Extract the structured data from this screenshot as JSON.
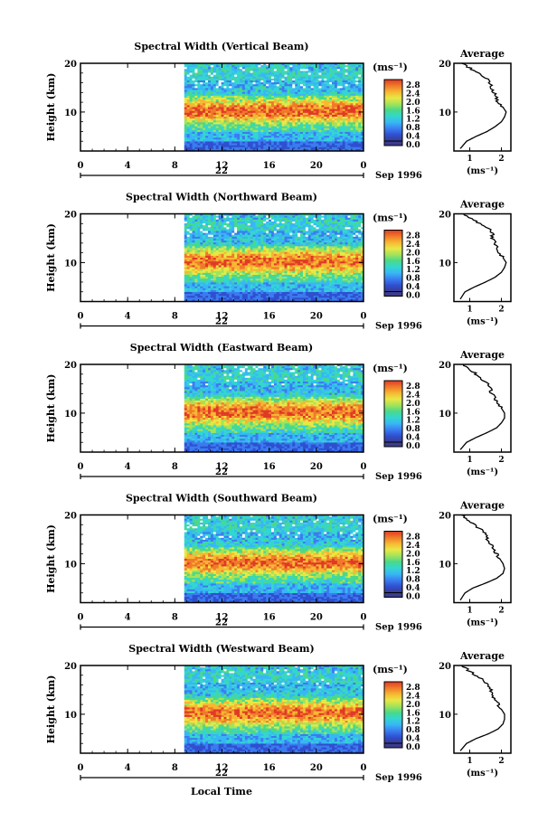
{
  "figure": {
    "xlabel_bottom": "Local Time",
    "colorscale": [
      "#3b3b8f",
      "#2f4fd0",
      "#3a7cf0",
      "#38b6f5",
      "#33d6d0",
      "#49d98a",
      "#a3e35a",
      "#e8e845",
      "#f7b733",
      "#f07a2a",
      "#e03a26"
    ]
  },
  "chart_data": [
    {
      "type": "heatmap",
      "title": "Spectral Width (Vertical Beam)",
      "ylabel": "Height (km)",
      "yticks": [
        "20",
        "10"
      ],
      "ylim": [
        2,
        20
      ],
      "xticks": [
        "0",
        "4",
        "8",
        "12",
        "16",
        "20",
        "0"
      ],
      "xlim": [
        0,
        24
      ],
      "date_marker": "22",
      "date_label": "Sep 1996",
      "data_start_hour": 8.8,
      "colorbar": {
        "unit": "(ms⁻¹)",
        "ticks": [
          "2.8",
          "2.4",
          "2.0",
          "1.6",
          "1.2",
          "0.8",
          "0.4",
          "0.0"
        ]
      },
      "profile": {
        "title": "Average",
        "xlabel": "(ms⁻¹)",
        "xticks": [
          "1",
          "2"
        ],
        "yticks": [
          "20",
          "10"
        ],
        "heights": [
          2.5,
          4,
          5,
          6,
          7,
          8,
          9,
          10,
          11,
          12,
          13,
          14,
          15,
          16,
          17,
          18,
          19,
          20
        ],
        "values": [
          0.7,
          0.9,
          1.2,
          1.55,
          1.8,
          2.0,
          2.1,
          2.15,
          2.05,
          1.9,
          1.85,
          1.75,
          1.7,
          1.65,
          1.5,
          1.3,
          1.0,
          0.75
        ]
      }
    },
    {
      "type": "heatmap",
      "title": "Spectral Width (Northward Beam)",
      "ylabel": "Height (km)",
      "yticks": [
        "20",
        "10"
      ],
      "ylim": [
        2,
        20
      ],
      "xticks": [
        "0",
        "4",
        "8",
        "12",
        "16",
        "20",
        "0"
      ],
      "xlim": [
        0,
        24
      ],
      "date_marker": "22",
      "date_label": "Sep 1996",
      "data_start_hour": 8.8,
      "colorbar": {
        "unit": "(ms⁻¹)",
        "ticks": [
          "2.8",
          "2.4",
          "2.0",
          "1.6",
          "1.2",
          "0.8",
          "0.4",
          "0.0"
        ]
      },
      "profile": {
        "title": "Average",
        "xlabel": "(ms⁻¹)",
        "xticks": [
          "1",
          "2"
        ],
        "yticks": [
          "20",
          "10"
        ],
        "heights": [
          2.5,
          4,
          5,
          6,
          7,
          8,
          9,
          10,
          11,
          12,
          13,
          14,
          15,
          16,
          17,
          18,
          19,
          20
        ],
        "values": [
          0.7,
          0.85,
          1.15,
          1.5,
          1.8,
          2.0,
          2.1,
          2.15,
          2.05,
          1.9,
          1.85,
          1.8,
          1.7,
          1.75,
          1.6,
          1.3,
          1.05,
          0.8
        ]
      }
    },
    {
      "type": "heatmap",
      "title": "Spectral Width (Eastward Beam)",
      "ylabel": "Height (km)",
      "yticks": [
        "20",
        "10"
      ],
      "ylim": [
        2,
        20
      ],
      "xticks": [
        "0",
        "4",
        "8",
        "12",
        "16",
        "20",
        "0"
      ],
      "xlim": [
        0,
        24
      ],
      "date_marker": "22",
      "date_label": "Sep 1996",
      "data_start_hour": 8.8,
      "colorbar": {
        "unit": "(ms⁻¹)",
        "ticks": [
          "2.8",
          "2.4",
          "2.0",
          "1.6",
          "1.2",
          "0.8",
          "0.4",
          "0.0"
        ]
      },
      "profile": {
        "title": "Average",
        "xlabel": "(ms⁻¹)",
        "xticks": [
          "1",
          "2"
        ],
        "yticks": [
          "20",
          "10"
        ],
        "heights": [
          2.5,
          4,
          5,
          6,
          7,
          8,
          9,
          10,
          11,
          12,
          13,
          14,
          15,
          16,
          17,
          18,
          19,
          20
        ],
        "values": [
          0.7,
          0.9,
          1.2,
          1.55,
          1.85,
          2.0,
          2.1,
          2.1,
          2.0,
          1.9,
          1.8,
          1.7,
          1.65,
          1.55,
          1.4,
          1.2,
          1.0,
          0.8
        ]
      }
    },
    {
      "type": "heatmap",
      "title": "Spectral Width (Southward Beam)",
      "ylabel": "Height (km)",
      "yticks": [
        "20",
        "10"
      ],
      "ylim": [
        2,
        20
      ],
      "xticks": [
        "0",
        "4",
        "8",
        "12",
        "16",
        "20",
        "0"
      ],
      "xlim": [
        0,
        24
      ],
      "date_marker": "22",
      "date_label": "Sep 1996",
      "data_start_hour": 8.8,
      "colorbar": {
        "unit": "(ms⁻¹)",
        "ticks": [
          "2.8",
          "2.4",
          "2.0",
          "1.6",
          "1.2",
          "0.8",
          "0.4",
          "0.0"
        ]
      },
      "profile": {
        "title": "Average",
        "xlabel": "(ms⁻¹)",
        "xticks": [
          "1",
          "2"
        ],
        "yticks": [
          "20",
          "10"
        ],
        "heights": [
          2.5,
          4,
          5,
          6,
          7,
          8,
          9,
          10,
          11,
          12,
          13,
          14,
          15,
          16,
          17,
          18,
          19,
          20
        ],
        "values": [
          0.7,
          0.85,
          1.1,
          1.5,
          1.85,
          2.05,
          2.1,
          2.05,
          1.95,
          1.85,
          1.75,
          1.65,
          1.55,
          1.5,
          1.35,
          1.15,
          0.95,
          0.75
        ]
      }
    },
    {
      "type": "heatmap",
      "title": "Spectral Width (Westward Beam)",
      "ylabel": "Height (km)",
      "yticks": [
        "20",
        "10"
      ],
      "ylim": [
        2,
        20
      ],
      "xticks": [
        "0",
        "4",
        "8",
        "12",
        "16",
        "20",
        "0"
      ],
      "xlim": [
        0,
        24
      ],
      "date_marker": "22",
      "date_label": "Sep 1996",
      "data_start_hour": 8.8,
      "colorbar": {
        "unit": "(ms⁻¹)",
        "ticks": [
          "2.8",
          "2.4",
          "2.0",
          "1.6",
          "1.2",
          "0.8",
          "0.4",
          "0.0"
        ]
      },
      "profile": {
        "title": "Average",
        "xlabel": "(ms⁻¹)",
        "xticks": [
          "1",
          "2"
        ],
        "yticks": [
          "20",
          "10"
        ],
        "heights": [
          2.5,
          4,
          5,
          6,
          7,
          8,
          9,
          10,
          11,
          12,
          13,
          14,
          15,
          16,
          17,
          18,
          19,
          20
        ],
        "values": [
          0.7,
          0.9,
          1.2,
          1.6,
          1.9,
          2.05,
          2.1,
          2.1,
          2.0,
          1.9,
          1.8,
          1.7,
          1.65,
          1.55,
          1.4,
          1.2,
          0.95,
          0.75
        ]
      }
    }
  ]
}
